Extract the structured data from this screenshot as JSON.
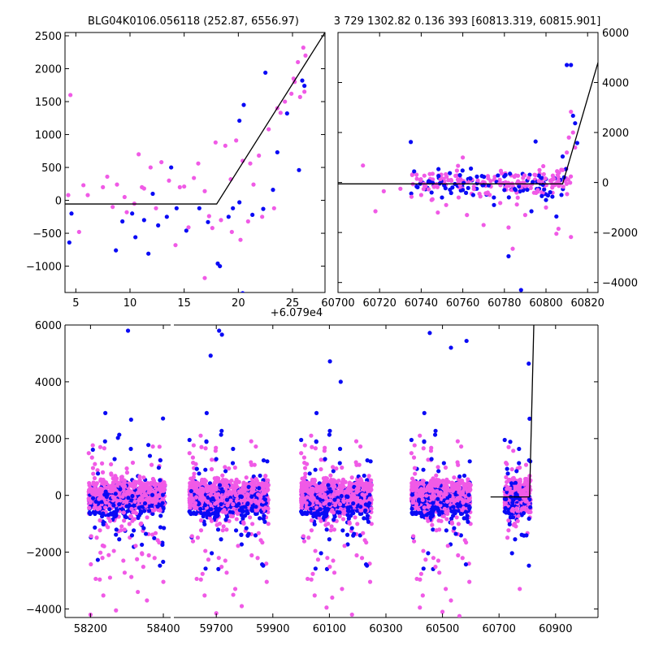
{
  "colors": {
    "series_a": "#0a0af5",
    "series_b": "#f05ae6",
    "model": "#000000",
    "frame": "#000000"
  },
  "chart_data": [
    {
      "id": "zoom-left",
      "type": "scatter",
      "title": "BLG04K0106.056118 (252.87, 6556.97)",
      "xlabel": "",
      "ylabel": "",
      "xlim": [
        4,
        28
      ],
      "ylim": [
        -1400,
        2550
      ],
      "x_ticks": [
        5,
        10,
        15,
        20,
        25
      ],
      "y_ticks": [
        -1000,
        -500,
        0,
        500,
        1000,
        1500,
        2000,
        2500
      ],
      "x_offset_label": "+6.079e4",
      "model_line": {
        "x": [
          4,
          18,
          28
        ],
        "y": [
          -55,
          -55,
          2550
        ]
      },
      "series": [
        {
          "name": "blue",
          "color": "#0a0af5",
          "points": [
            [
              4.4,
              -640
            ],
            [
              4.6,
              -200
            ],
            [
              8.7,
              -760
            ],
            [
              9.3,
              -320
            ],
            [
              10.5,
              -560
            ],
            [
              11.3,
              -300
            ],
            [
              11.7,
              -810
            ],
            [
              12.6,
              -380
            ],
            [
              13.4,
              -250
            ],
            [
              14.3,
              -120
            ],
            [
              15.2,
              -460
            ],
            [
              16.4,
              -120
            ],
            [
              17.2,
              -330
            ],
            [
              18.1,
              -960
            ],
            [
              18.3,
              -1000
            ],
            [
              19.1,
              -250
            ],
            [
              20.1,
              1210
            ],
            [
              20.4,
              -1410
            ],
            [
              20.5,
              1450
            ],
            [
              21.3,
              -220
            ],
            [
              22.3,
              -130
            ],
            [
              22.5,
              1940
            ],
            [
              23.2,
              160
            ],
            [
              23.6,
              730
            ],
            [
              24.5,
              1320
            ],
            [
              25.6,
              460
            ],
            [
              25.9,
              1820
            ],
            [
              26.1,
              1740
            ],
            [
              20.1,
              -30
            ],
            [
              19.5,
              -120
            ],
            [
              13.8,
              500
            ],
            [
              12.1,
              100
            ],
            [
              10.2,
              -200
            ]
          ]
        },
        {
          "name": "pink",
          "color": "#f05ae6",
          "points": [
            [
              4.5,
              1600
            ],
            [
              4.3,
              80
            ],
            [
              5.3,
              -480
            ],
            [
              5.7,
              230
            ],
            [
              6.1,
              80
            ],
            [
              7.5,
              200
            ],
            [
              7.9,
              360
            ],
            [
              8.4,
              -100
            ],
            [
              8.8,
              240
            ],
            [
              9.7,
              -180
            ],
            [
              10.4,
              -50
            ],
            [
              10.8,
              700
            ],
            [
              11.3,
              180
            ],
            [
              11.9,
              500
            ],
            [
              12.4,
              -120
            ],
            [
              12.9,
              580
            ],
            [
              13.6,
              300
            ],
            [
              14.2,
              -680
            ],
            [
              14.6,
              200
            ],
            [
              15.4,
              -410
            ],
            [
              15.9,
              340
            ],
            [
              16.3,
              560
            ],
            [
              16.9,
              140
            ],
            [
              17.3,
              -240
            ],
            [
              17.9,
              880
            ],
            [
              18.4,
              -300
            ],
            [
              18.8,
              830
            ],
            [
              19.3,
              320
            ],
            [
              19.8,
              910
            ],
            [
              20.2,
              -600
            ],
            [
              20.4,
              600
            ],
            [
              20.9,
              -320
            ],
            [
              21.4,
              240
            ],
            [
              21.9,
              680
            ],
            [
              22.2,
              -250
            ],
            [
              22.8,
              1080
            ],
            [
              23.3,
              -120
            ],
            [
              23.9,
              1330
            ],
            [
              24.3,
              1500
            ],
            [
              24.9,
              1620
            ],
            [
              25.2,
              1800
            ],
            [
              25.5,
              2100
            ],
            [
              26.0,
              2320
            ],
            [
              26.2,
              2200
            ],
            [
              25.1,
              1850
            ],
            [
              25.7,
              1570
            ],
            [
              26.1,
              1650
            ],
            [
              16.9,
              -1180
            ],
            [
              11.1,
              200
            ],
            [
              9.5,
              50
            ],
            [
              15.0,
              210
            ],
            [
              17.6,
              -420
            ],
            [
              21.1,
              560
            ],
            [
              23.6,
              1400
            ],
            [
              19.4,
              -480
            ]
          ]
        }
      ]
    },
    {
      "id": "zoom-right",
      "type": "scatter",
      "title": "3 729 1302.82 0.136 393 [60813.319, 60815.901]",
      "xlabel": "",
      "ylabel": "",
      "xlim": [
        60700,
        60825
      ],
      "ylim": [
        -4400,
        6000
      ],
      "x_ticks": [
        60700,
        60720,
        60740,
        60760,
        60780,
        60800,
        60820
      ],
      "y_ticks": [
        -4000,
        -2000,
        0,
        2000,
        4000,
        6000
      ],
      "y_axis_side": "right",
      "model_line": {
        "x": [
          60700,
          60808,
          60825
        ],
        "y": [
          -55,
          -55,
          4800
        ]
      },
      "series": [
        {
          "name": "blue",
          "color": "#0a0af5",
          "points": [
            [
              60735,
              1620
            ],
            [
              60750,
              -600
            ],
            [
              60760,
              -300
            ],
            [
              60765,
              -500
            ],
            [
              60775,
              -900
            ],
            [
              60782,
              -2950
            ],
            [
              60785,
              -260
            ],
            [
              60790,
              -200
            ],
            [
              60793,
              -1150
            ],
            [
              60795,
              1640
            ],
            [
              60798,
              -540
            ],
            [
              60800,
              -700
            ],
            [
              60802,
              -390
            ],
            [
              60805,
              -1360
            ],
            [
              60808,
              1040
            ],
            [
              60810,
              4700
            ],
            [
              60812,
              4700
            ],
            [
              60813,
              2670
            ],
            [
              60814,
              2370
            ],
            [
              60815,
              1580
            ],
            [
              60788,
              -4300
            ],
            [
              60770,
              -100
            ],
            [
              60745,
              -400
            ],
            [
              60755,
              -200
            ],
            [
              60780,
              -300
            ]
          ]
        },
        {
          "name": "pink",
          "color": "#f05ae6",
          "points": [
            [
              60712,
              680
            ],
            [
              60718,
              -1150
            ],
            [
              60722,
              -350
            ],
            [
              60730,
              -250
            ],
            [
              60740,
              -500
            ],
            [
              60745,
              -700
            ],
            [
              60748,
              -1200
            ],
            [
              60752,
              -900
            ],
            [
              60758,
              -600
            ],
            [
              60762,
              -1300
            ],
            [
              60768,
              -450
            ],
            [
              60772,
              -400
            ],
            [
              60778,
              -820
            ],
            [
              60782,
              -1800
            ],
            [
              60784,
              -2650
            ],
            [
              60786,
              -880
            ],
            [
              60790,
              -150
            ],
            [
              60796,
              -300
            ],
            [
              60800,
              -1000
            ],
            [
              60803,
              -200
            ],
            [
              60805,
              -2050
            ],
            [
              60806,
              80
            ],
            [
              60808,
              500
            ],
            [
              60810,
              1200
            ],
            [
              60811,
              1800
            ],
            [
              60812,
              2830
            ],
            [
              60813,
              2000
            ],
            [
              60814,
              1400
            ],
            [
              60812,
              -2180
            ],
            [
              60806,
              -1850
            ],
            [
              60760,
              1000
            ],
            [
              60790,
              -1300
            ],
            [
              60770,
              -1700
            ]
          ]
        }
      ],
      "band": {
        "x": [
          60735,
          60812
        ],
        "y": [
          -400,
          400
        ],
        "n": 260
      }
    },
    {
      "id": "full-lightcurve",
      "type": "scatter",
      "xlabel": "",
      "ylabel": "",
      "ylim": [
        -4300,
        6000
      ],
      "y_ticks": [
        -4000,
        -2000,
        0,
        2000,
        4000,
        6000
      ],
      "segments": [
        {
          "xlim": [
            58130,
            58420
          ],
          "x_ticks": [
            58200,
            58400
          ],
          "season": [
            58195,
            58405
          ]
        },
        {
          "xlim": [
            59550,
            61050
          ],
          "x_ticks": [
            59700,
            59900,
            60100,
            60300,
            60500,
            60700,
            60900
          ],
          "seasons": [
            [
              59605,
              59885
            ],
            [
              60000,
              60250
            ],
            [
              60390,
              60600
            ],
            [
              60720,
              60812
            ]
          ]
        }
      ],
      "model_line": {
        "x": [
          60670,
          60808,
          60823
        ],
        "y": [
          -55,
          -55,
          6000
        ]
      },
      "outliers": [
        [
          58303,
          5800
        ],
        [
          59680,
          4920
        ],
        [
          59710,
          5800
        ],
        [
          59720,
          5660
        ],
        [
          60102,
          4720
        ],
        [
          60140,
          4000
        ],
        [
          60455,
          5720
        ],
        [
          60530,
          5200
        ],
        [
          60585,
          5440
        ],
        [
          60805,
          4640
        ],
        [
          60808,
          2700
        ],
        [
          58270,
          -4050
        ],
        [
          58200,
          -4200
        ],
        [
          58355,
          -3700
        ],
        [
          59700,
          -4150
        ],
        [
          59790,
          -3900
        ],
        [
          60090,
          -3950
        ],
        [
          60180,
          -4200
        ],
        [
          60420,
          -3950
        ],
        [
          60500,
          -4100
        ],
        [
          60560,
          -4250
        ],
        [
          58330,
          -3400
        ],
        [
          59760,
          -3500
        ],
        [
          60110,
          -3600
        ],
        [
          60530,
          -3700
        ]
      ]
    }
  ]
}
